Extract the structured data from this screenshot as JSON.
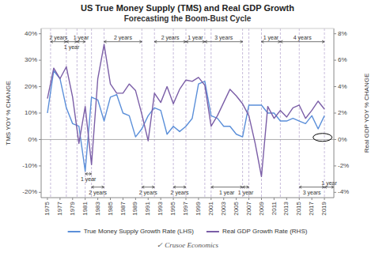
{
  "chart_data": {
    "type": "line",
    "title": "US True Money Supply (TMS) and Real GDP Growth",
    "subtitle": "Forecasting the Boom-Bust Cycle",
    "ylabel": "TMS YOY % CHANGE",
    "y2label": "Real GDP YOY % CHANGE",
    "x": [
      1975,
      1976,
      1977,
      1978,
      1979,
      1980,
      1981,
      1982,
      1983,
      1984,
      1985,
      1986,
      1987,
      1988,
      1989,
      1990,
      1991,
      1992,
      1993,
      1994,
      1995,
      1996,
      1997,
      1998,
      1999,
      2000,
      2001,
      2002,
      2003,
      2004,
      2005,
      2006,
      2007,
      2008,
      2009,
      2010,
      2011,
      2012,
      2013,
      2014,
      2015,
      2016,
      2017,
      2018,
      2019
    ],
    "series": [
      {
        "name": "True Money Supply Growth Rate (LHS)",
        "color": "#5b8fd9",
        "values": [
          10,
          26,
          23,
          12,
          6,
          5,
          -12,
          16,
          15,
          7,
          16,
          17,
          10,
          9,
          1,
          4,
          9,
          12,
          11,
          2,
          5,
          3,
          5,
          8,
          21,
          22,
          9,
          8,
          5,
          5,
          2,
          1,
          13,
          13,
          13,
          10,
          10,
          7,
          7,
          8,
          7,
          6,
          9,
          4,
          9
        ]
      },
      {
        "name": "Real GDP Growth Rate (RHS)",
        "color": "#7b5ea7",
        "axis": "y2",
        "values": [
          3.1,
          5.4,
          4.6,
          5.5,
          3.2,
          -0.3,
          2.5,
          -1.9,
          4.6,
          7.2,
          4.2,
          3.5,
          3.5,
          4.2,
          3.7,
          1.9,
          -0.1,
          3.5,
          2.8,
          4.0,
          2.7,
          3.8,
          4.5,
          4.4,
          4.7,
          4.1,
          1.0,
          1.8,
          2.8,
          3.8,
          3.3,
          2.7,
          1.8,
          -0.3,
          -2.8,
          2.5,
          1.6,
          2.2,
          1.7,
          2.4,
          2.6,
          1.6,
          2.2,
          2.9,
          2.3
        ]
      }
    ],
    "xlim": [
      1974,
      2020.5
    ],
    "xticks": [
      1975,
      1977,
      1979,
      1981,
      1983,
      1985,
      1987,
      1989,
      1991,
      1993,
      1995,
      1997,
      1999,
      2001,
      2003,
      2005,
      2007,
      2009,
      2011,
      2013,
      2015,
      2017,
      2019
    ],
    "ylim": [
      -22,
      42
    ],
    "yticks": [
      {
        "value": -20,
        "label": "-20%"
      },
      {
        "value": -10,
        "label": "-10%"
      },
      {
        "value": 0,
        "label": "0%"
      },
      {
        "value": 10,
        "label": "10%"
      },
      {
        "value": 20,
        "label": "20%"
      },
      {
        "value": 30,
        "label": "30%"
      },
      {
        "value": 40,
        "label": "40%"
      }
    ],
    "y2lim": [
      -4.4,
      8.4
    ],
    "y2ticks": [
      {
        "value": -4,
        "label": "-4%"
      },
      {
        "value": -2,
        "label": "-2%"
      },
      {
        "value": 0,
        "label": "0%"
      },
      {
        "value": 2,
        "label": "2%"
      },
      {
        "value": 4,
        "label": "4%"
      },
      {
        "value": 6,
        "label": "6%"
      },
      {
        "value": 8,
        "label": "8%"
      }
    ],
    "vlines": [
      1975.5,
      1978,
      1979.7,
      1981,
      1982,
      1984,
      1990,
      1992,
      1995,
      1997,
      2000,
      2001,
      2006,
      2007,
      2009,
      2012,
      2015,
      2019
    ],
    "hlines": [
      0
    ],
    "annotations": [
      {
        "x1": 1975.5,
        "x2": 1978,
        "y": 37,
        "label": "2 years"
      },
      {
        "x1": 1978,
        "x2": 1979.7,
        "y": 37,
        "label": "1 year"
      },
      {
        "x1": 1979.7,
        "x2": 1981,
        "y": 37,
        "label": "1 year"
      },
      {
        "x1": 1984,
        "x2": 1990,
        "y": 37,
        "label": "2 years"
      },
      {
        "x1": 1992,
        "x2": 1997,
        "y": 37,
        "label": "2 years"
      },
      {
        "x1": 1997,
        "x2": 2000,
        "y": 37,
        "label": "1 year"
      },
      {
        "x1": 2000,
        "x2": 2006,
        "y": 37,
        "label": "3 years"
      },
      {
        "x1": 2009,
        "x2": 2012,
        "y": 37,
        "label": "1 year"
      },
      {
        "x1": 2012,
        "x2": 2019,
        "y": 37,
        "label": "4 years"
      },
      {
        "x1": 1981,
        "x2": 1982,
        "y": -13,
        "label": "1 year"
      },
      {
        "x1": 1982,
        "x2": 1984,
        "y": -18,
        "label": "2 years"
      },
      {
        "x1": 1990,
        "x2": 1992,
        "y": -18,
        "label": "2 years"
      },
      {
        "x1": 1995,
        "x2": 1997,
        "y": -18,
        "label": "2 years"
      },
      {
        "x1": 2001,
        "x2": 2006,
        "y": -18,
        "label": "1 year"
      },
      {
        "x1": 2006,
        "x2": 2007,
        "y": -18,
        "label": "1 year"
      },
      {
        "x1": 2015,
        "x2": 2019,
        "y": -18,
        "label": "3 years"
      },
      {
        "x1": 2019,
        "x2": 2020.5,
        "y": -18,
        "label": "1 year"
      }
    ],
    "circle": {
      "x": 2018.7,
      "y": 0.8,
      "r": 1.5
    },
    "legend": "bottom",
    "grid": false,
    "watermark": "✓ Crusoe Economics"
  }
}
